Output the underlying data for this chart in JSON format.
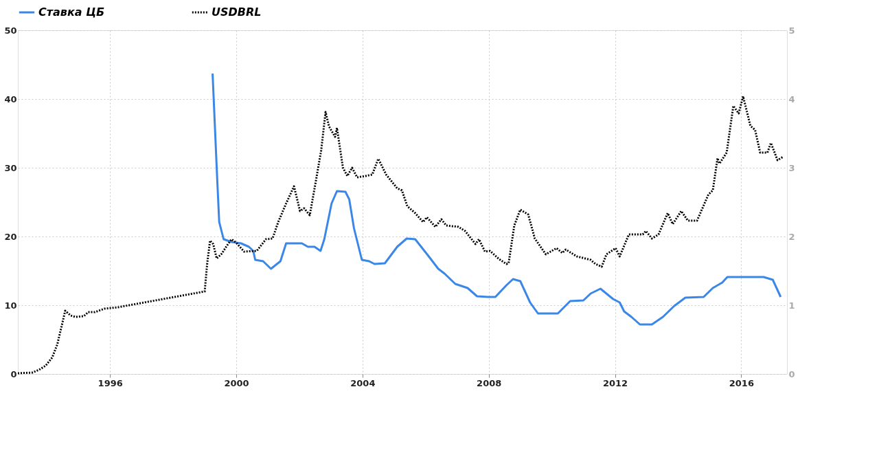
{
  "chart_data": {
    "type": "line",
    "legend": "top",
    "grid": true,
    "xlim": [
      1993.08,
      2017.45
    ],
    "xticks": [
      1996,
      2000,
      2004,
      2008,
      2012,
      2016
    ],
    "ylim": [
      0,
      50
    ],
    "yticks": [
      0,
      10,
      20,
      30,
      40,
      50
    ],
    "y2lim": [
      0,
      5
    ],
    "y2ticks": [
      0,
      1,
      2,
      3,
      4,
      5
    ],
    "series": [
      {
        "name": "Ставка ЦБ",
        "color": "#3b87e8",
        "line_style": "solid",
        "x": [
          1999.25,
          1999.4,
          1999.46,
          1999.6,
          1999.85,
          2000.15,
          2000.4,
          2000.54,
          2000.6,
          2000.85,
          2001.1,
          2001.4,
          2001.58,
          2002.08,
          2002.27,
          2002.48,
          2002.67,
          2002.79,
          2003.02,
          2003.19,
          2003.46,
          2003.58,
          2003.73,
          2003.98,
          2004.21,
          2004.38,
          2004.71,
          2005.1,
          2005.4,
          2005.67,
          2006.1,
          2006.4,
          2006.6,
          2006.94,
          2007.33,
          2007.63,
          2007.98,
          2008.21,
          2008.56,
          2008.77,
          2009.0,
          2009.31,
          2009.56,
          2010.19,
          2010.58,
          2011.0,
          2011.23,
          2011.54,
          2011.94,
          2012.15,
          2012.29,
          2012.52,
          2012.79,
          2013.17,
          2013.52,
          2013.88,
          2014.23,
          2014.81,
          2015.1,
          2015.4,
          2015.56,
          2016.71,
          2017.0,
          2017.25
        ],
        "values": [
          43.7,
          28.0,
          22.1,
          19.6,
          19.2,
          19.0,
          18.5,
          17.9,
          16.6,
          16.4,
          15.3,
          16.4,
          19.0,
          19.0,
          18.5,
          18.5,
          17.9,
          19.6,
          24.8,
          26.6,
          26.5,
          25.4,
          21.2,
          16.6,
          16.4,
          16.0,
          16.1,
          18.5,
          19.7,
          19.6,
          17.1,
          15.3,
          14.6,
          13.1,
          12.5,
          11.3,
          11.2,
          11.2,
          12.9,
          13.8,
          13.5,
          10.4,
          8.8,
          8.8,
          10.6,
          10.7,
          11.7,
          12.4,
          10.9,
          10.4,
          9.1,
          8.3,
          7.2,
          7.2,
          8.3,
          9.9,
          11.1,
          11.2,
          12.5,
          13.3,
          14.1,
          14.1,
          13.7,
          11.2
        ]
      },
      {
        "name": "USDBRL",
        "color": "#000000",
        "line_style": "dotted",
        "axis": "y2",
        "x": [
          1993.08,
          1993.54,
          1993.75,
          1993.96,
          1994.17,
          1994.33,
          1994.5,
          1994.58,
          1994.75,
          1994.9,
          1995.17,
          1995.31,
          1995.52,
          1995.83,
          1996.25,
          1999.0,
          1999.08,
          1999.17,
          1999.27,
          1999.38,
          1999.54,
          1999.71,
          1999.85,
          2000.0,
          2000.25,
          2000.65,
          2000.94,
          2001.15,
          2001.33,
          2001.58,
          2001.83,
          2002.02,
          2002.15,
          2002.33,
          2002.52,
          2002.69,
          2002.83,
          2002.94,
          2003.13,
          2003.19,
          2003.38,
          2003.52,
          2003.67,
          2003.83,
          2004.1,
          2004.31,
          2004.5,
          2004.75,
          2005.1,
          2005.25,
          2005.42,
          2005.67,
          2005.92,
          2006.04,
          2006.31,
          2006.5,
          2006.65,
          2007.04,
          2007.25,
          2007.58,
          2007.69,
          2007.88,
          2008.04,
          2008.33,
          2008.56,
          2008.63,
          2008.81,
          2009.0,
          2009.25,
          2009.46,
          2009.81,
          2010.15,
          2010.33,
          2010.44,
          2010.79,
          2011.23,
          2011.38,
          2011.58,
          2011.73,
          2012.02,
          2012.15,
          2012.44,
          2012.88,
          2012.98,
          2013.17,
          2013.38,
          2013.67,
          2013.83,
          2014.1,
          2014.31,
          2014.6,
          2014.96,
          2015.1,
          2015.25,
          2015.31,
          2015.54,
          2015.75,
          2015.92,
          2016.06,
          2016.29,
          2016.44,
          2016.6,
          2016.83,
          2016.94,
          2017.15,
          2017.33
        ],
        "values": [
          0.01,
          0.02,
          0.06,
          0.12,
          0.24,
          0.43,
          0.76,
          0.92,
          0.85,
          0.83,
          0.84,
          0.9,
          0.9,
          0.95,
          0.97,
          1.2,
          1.61,
          1.94,
          1.89,
          1.68,
          1.75,
          1.87,
          1.96,
          1.91,
          1.78,
          1.79,
          1.96,
          1.97,
          2.21,
          2.48,
          2.73,
          2.37,
          2.41,
          2.31,
          2.8,
          3.25,
          3.81,
          3.6,
          3.45,
          3.58,
          3.0,
          2.88,
          3.0,
          2.86,
          2.88,
          2.9,
          3.13,
          2.9,
          2.7,
          2.67,
          2.44,
          2.34,
          2.21,
          2.28,
          2.14,
          2.25,
          2.16,
          2.14,
          2.08,
          1.89,
          1.96,
          1.78,
          1.79,
          1.67,
          1.6,
          1.61,
          2.16,
          2.39,
          2.32,
          1.97,
          1.74,
          1.83,
          1.76,
          1.81,
          1.71,
          1.66,
          1.6,
          1.56,
          1.74,
          1.83,
          1.71,
          2.03,
          2.03,
          2.08,
          1.97,
          2.03,
          2.34,
          2.18,
          2.37,
          2.23,
          2.23,
          2.61,
          2.67,
          3.14,
          3.06,
          3.22,
          3.9,
          3.79,
          4.04,
          3.61,
          3.55,
          3.22,
          3.22,
          3.36,
          3.11,
          3.16
        ]
      }
    ]
  }
}
